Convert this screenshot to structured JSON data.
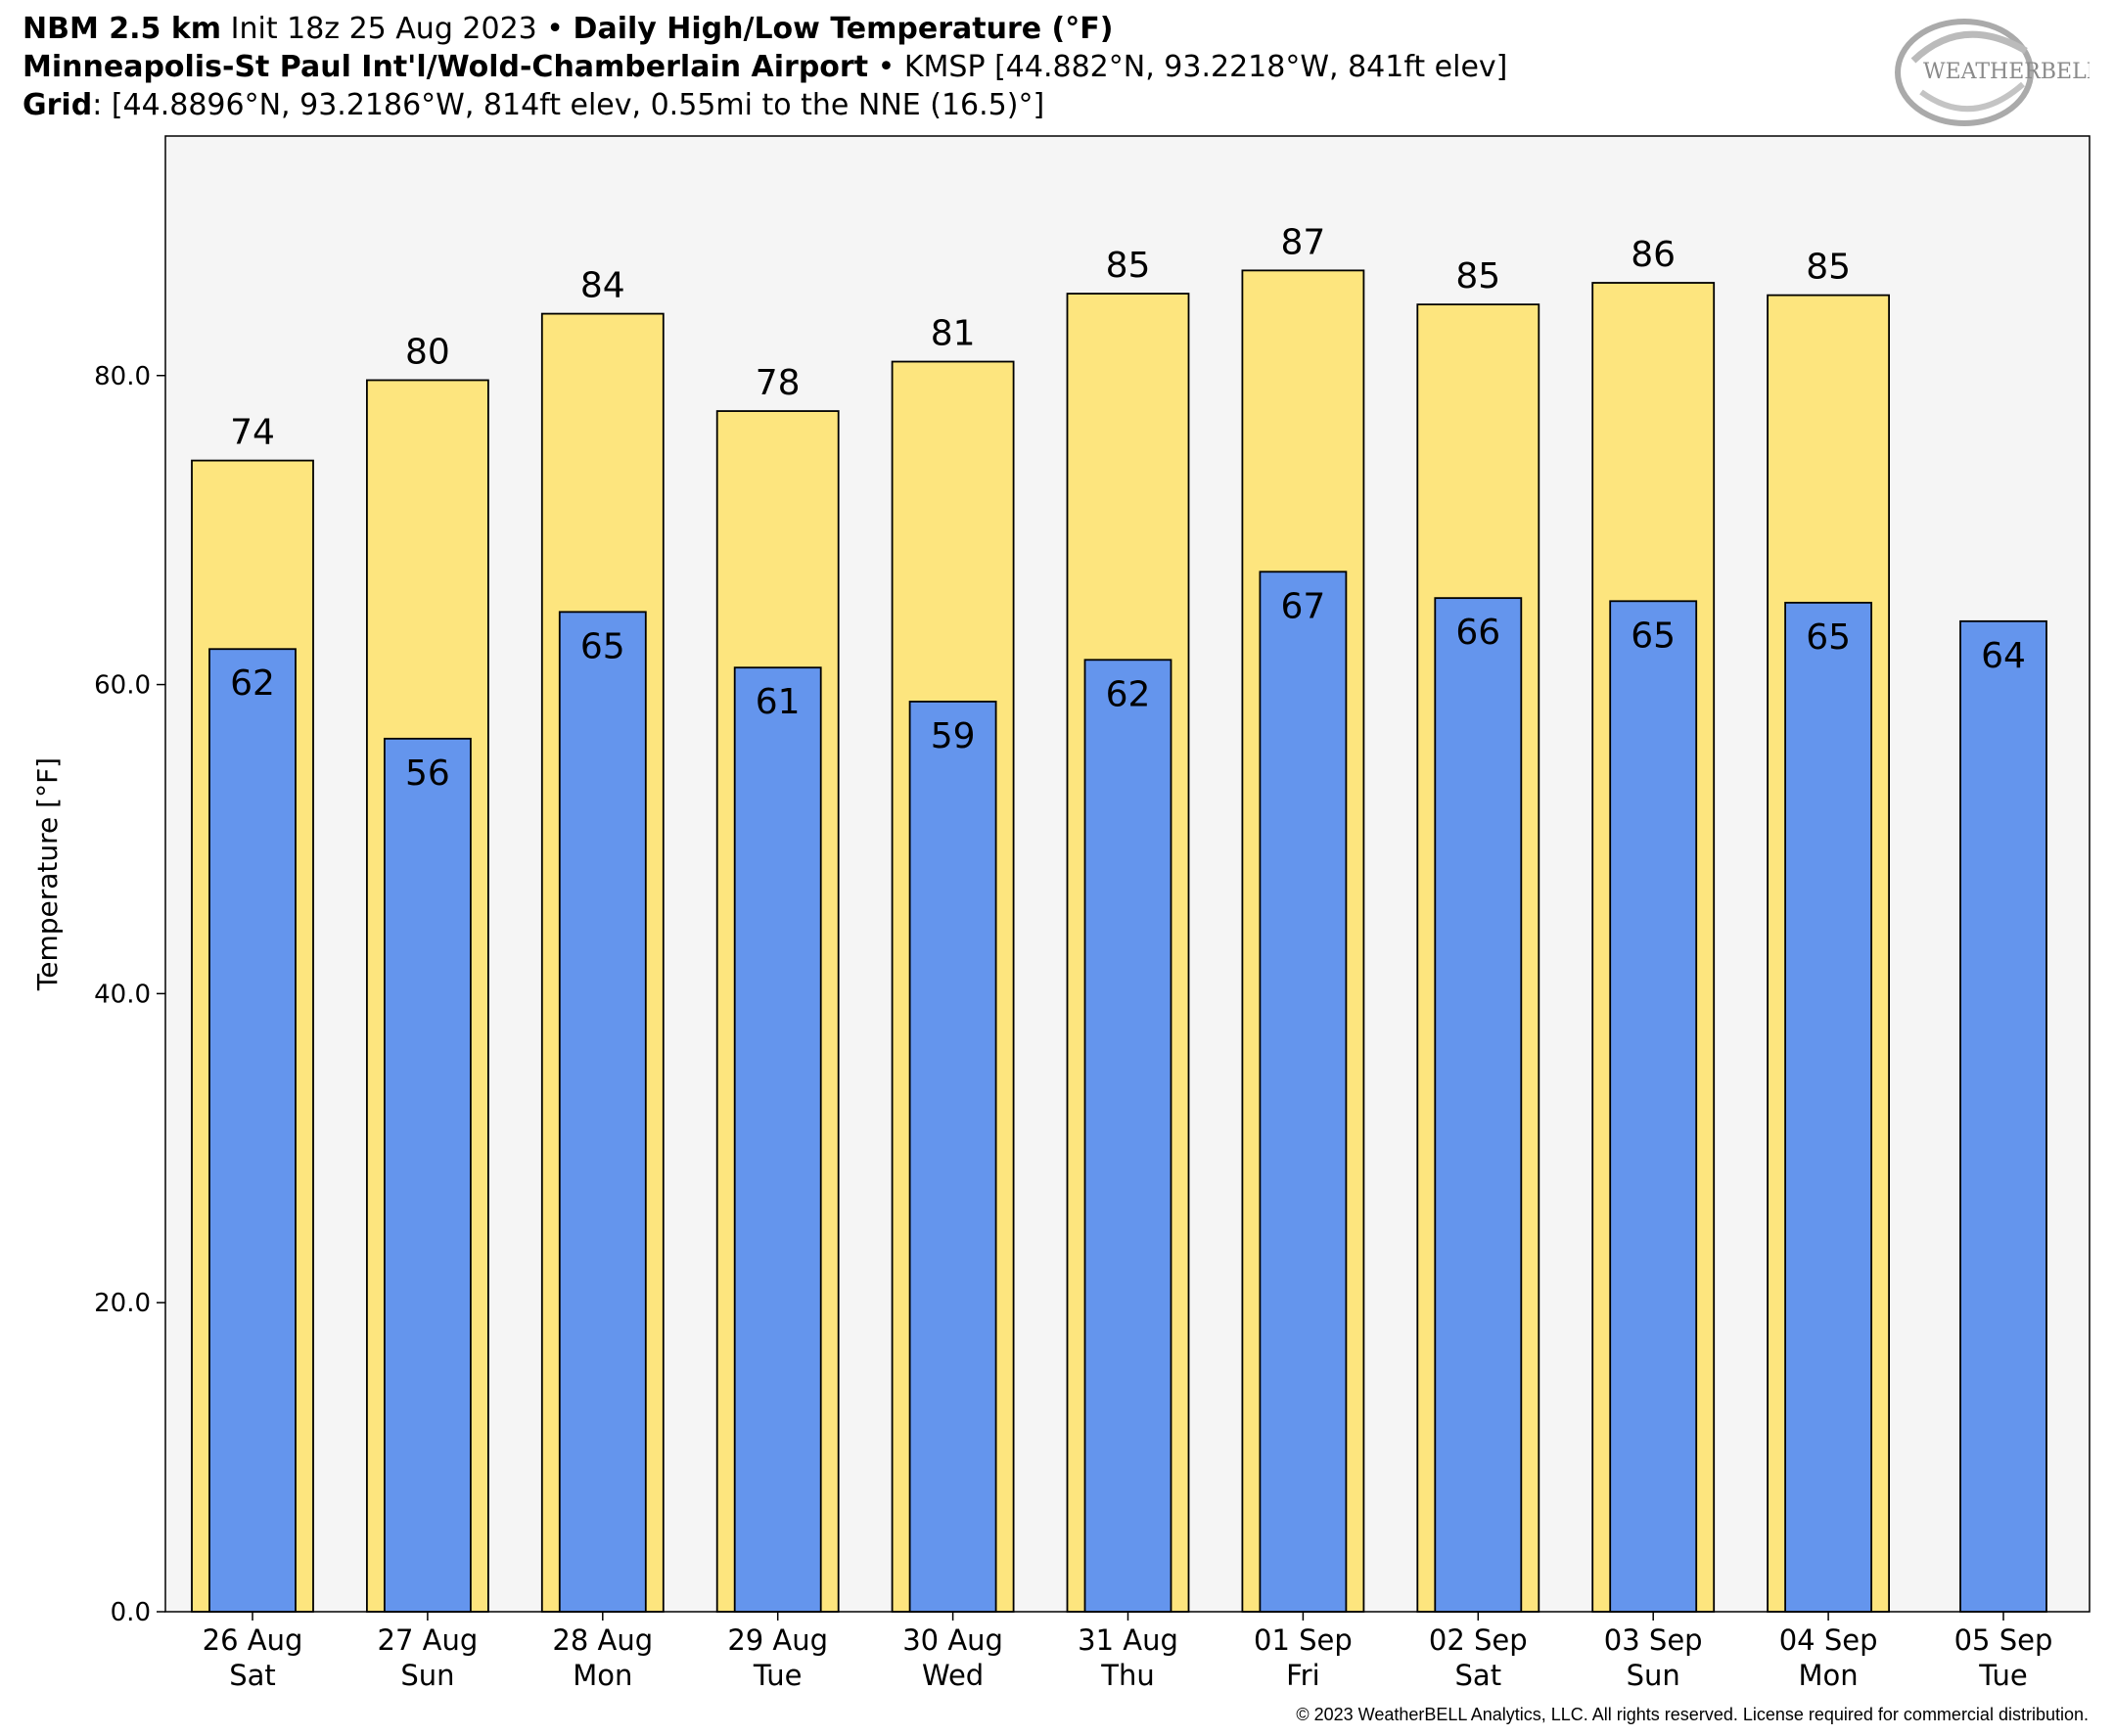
{
  "header": {
    "line1": {
      "model": "NBM 2.5 km",
      "init": "Init 18z 25 Aug 2023",
      "sep": "•",
      "product": "Daily High/Low Temperature (°F)"
    },
    "line2": {
      "station": "Minneapolis-St Paul Int'l/Wold-Chamberlain Airport",
      "sep": "•",
      "info": "KMSP [44.882°N, 93.2218°W, 841ft elev]"
    },
    "line3": {
      "label": "Grid",
      "info": ": [44.8896°N, 93.2186°W, 814ft elev, 0.55mi to the NNE (16.5)°]"
    }
  },
  "logo_text": "WEATHERBELL",
  "copyright": "© 2023 WeatherBELL Analytics, LLC. All rights reserved. License required for commercial distribution.",
  "chart_data": {
    "type": "bar",
    "ylabel": "Temperature [°F]",
    "ylim": [
      0,
      95.5
    ],
    "yticks": [
      0,
      20,
      40,
      60,
      80
    ],
    "ytick_labels": [
      "0.0",
      "20.0",
      "40.0",
      "60.0",
      "80.0"
    ],
    "grid": false,
    "categories": [
      {
        "date": "26 Aug",
        "day": "Sat"
      },
      {
        "date": "27 Aug",
        "day": "Sun"
      },
      {
        "date": "28 Aug",
        "day": "Mon"
      },
      {
        "date": "29 Aug",
        "day": "Tue"
      },
      {
        "date": "30 Aug",
        "day": "Wed"
      },
      {
        "date": "31 Aug",
        "day": "Thu"
      },
      {
        "date": "01 Sep",
        "day": "Fri"
      },
      {
        "date": "02 Sep",
        "day": "Sat"
      },
      {
        "date": "03 Sep",
        "day": "Sun"
      },
      {
        "date": "04 Sep",
        "day": "Mon"
      },
      {
        "date": "05 Sep",
        "day": "Tue"
      }
    ],
    "series": [
      {
        "values": [
          74.5,
          79.7,
          84.0,
          77.7,
          80.9,
          85.3,
          86.8,
          84.6,
          86.0,
          85.2,
          null
        ],
        "labels": [
          "74",
          "80",
          "84",
          "78",
          "81",
          "85",
          "87",
          "85",
          "86",
          "85",
          ""
        ],
        "color": "#fde57e"
      },
      {
        "values": [
          62.3,
          56.5,
          64.7,
          61.1,
          58.9,
          61.6,
          67.3,
          65.6,
          65.4,
          65.3,
          64.1
        ],
        "labels": [
          "62",
          "56",
          "65",
          "61",
          "59",
          "62",
          "67",
          "66",
          "65",
          "65",
          "64"
        ],
        "color": "#6495ed"
      }
    ],
    "plot_background": "#f5f5f5"
  }
}
